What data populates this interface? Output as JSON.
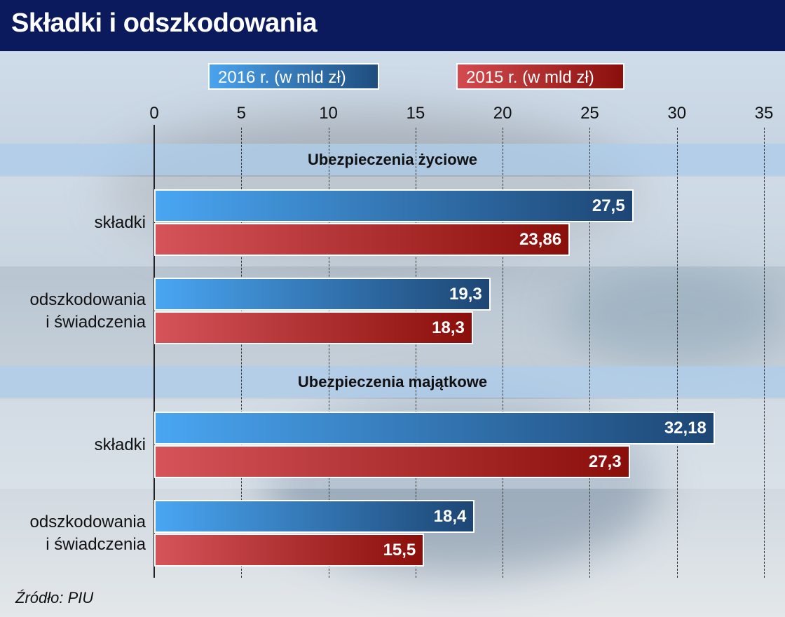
{
  "chart_data": {
    "type": "bar",
    "orientation": "horizontal",
    "title": "Składki i odszkodowania",
    "legend": [
      "2016 r. (w mld zł)",
      "2015 r. (w mld zł)"
    ],
    "xlim": [
      0,
      35
    ],
    "ticks": [
      "0",
      "5",
      "10",
      "15",
      "20",
      "25",
      "30",
      "35"
    ],
    "groups": [
      {
        "label": "Ubezpieczenia życiowe",
        "categories": [
          {
            "label": [
              "składki"
            ],
            "v2016": 27.5,
            "l2016": "27,5",
            "v2015": 23.86,
            "l2015": "23,86"
          },
          {
            "label": [
              "odszkodowania",
              "i świadczenia"
            ],
            "v2016": 19.3,
            "l2016": "19,3",
            "v2015": 18.3,
            "l2015": "18,3"
          }
        ]
      },
      {
        "label": "Ubezpieczenia majątkowe",
        "categories": [
          {
            "label": [
              "składki"
            ],
            "v2016": 32.18,
            "l2016": "32,18",
            "v2015": 27.3,
            "l2015": "27,3"
          },
          {
            "label": [
              "odszkodowania",
              "i świadczenia"
            ],
            "v2016": 18.4,
            "l2016": "18,4",
            "v2015": 15.5,
            "l2015": "15,5"
          }
        ]
      }
    ],
    "colors": {
      "2016": "#2f78c0",
      "2015": "#b02a2a"
    }
  },
  "source": "Źródło: PIU"
}
